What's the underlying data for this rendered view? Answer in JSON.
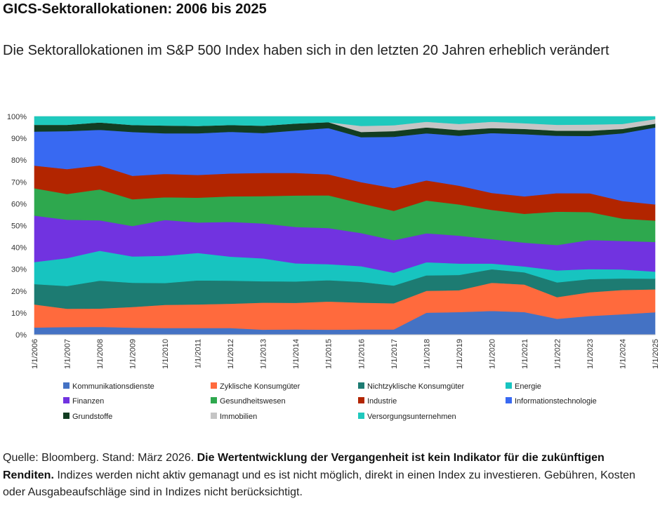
{
  "title": "GICS-Sektorallokationen: 2006 bis 2025",
  "subtitle": "Die Sektorallokationen im S&P 500 Index haben sich in den letzten 20 Jahren erheblich verändert",
  "source": {
    "plain_start": "Quelle: Bloomberg. Stand: März 2026. ",
    "bold": "Die Wertentwicklung der Vergangenheit ist kein Indikator für die zukünftigen Renditen.",
    "plain_end": " Indizes werden nicht aktiv gemanagt und es ist nicht möglich, direkt in einen Index zu investieren. Gebühren, Kosten oder Ausgabeaufschläge sind in Indizes nicht berücksichtigt."
  },
  "chart_data": {
    "type": "area",
    "stacked": true,
    "x": [
      "1/1/2006",
      "1/1/2007",
      "1/1/2008",
      "1/1/2009",
      "1/1/2010",
      "1/1/2011",
      "1/1/2012",
      "1/1/2013",
      "1/1/2014",
      "1/1/2015",
      "1/1/2016",
      "1/1/2017",
      "1/1/2018",
      "1/1/2019",
      "1/1/2020",
      "1/1/2021",
      "1/1/2022",
      "1/1/2023",
      "1/1/2024",
      "1/1/2025"
    ],
    "y_ticks": [
      "0%",
      "10%",
      "20%",
      "30%",
      "40%",
      "50%",
      "60%",
      "70%",
      "80%",
      "90%",
      "100%"
    ],
    "ylim": [
      0,
      100
    ],
    "legend_position": "bottom",
    "series": [
      {
        "name": "Kommunikationsdienste",
        "color": "#4472c4",
        "values": [
          3.3,
          3.5,
          3.6,
          3.2,
          3.1,
          3.1,
          3.1,
          2.3,
          2.4,
          2.3,
          2.4,
          2.4,
          10.1,
          10.4,
          10.9,
          10.4,
          7.3,
          8.6,
          9.4,
          10.3
        ]
      },
      {
        "name": "Zyklische Konsumgüter",
        "color": "#ff6a3d",
        "values": [
          10.6,
          8.4,
          8.4,
          9.5,
          10.6,
          10.8,
          11.1,
          12.4,
          12.2,
          12.9,
          12.3,
          12.0,
          10.0,
          10.0,
          12.9,
          12.6,
          9.9,
          10.9,
          11.1,
          10.5
        ]
      },
      {
        "name": "Nichtzyklische Konsumgüter",
        "color": "#1d7b72",
        "values": [
          9.3,
          10.4,
          12.8,
          11.1,
          10.0,
          11.0,
          10.6,
          9.8,
          9.8,
          9.8,
          9.5,
          8.1,
          7.1,
          7.0,
          6.2,
          5.6,
          6.8,
          6.0,
          5.3,
          4.9
        ]
      },
      {
        "name": "Energie",
        "color": "#17c4c0",
        "values": [
          10.1,
          12.8,
          13.7,
          12.1,
          12.5,
          12.6,
          11.0,
          10.5,
          8.3,
          7.3,
          7.2,
          5.9,
          6.0,
          5.2,
          2.6,
          2.7,
          5.5,
          4.6,
          4.1,
          3.2
        ]
      },
      {
        "name": "Finanzen",
        "color": "#7133e0",
        "values": [
          21.3,
          17.6,
          13.9,
          13.9,
          16.4,
          13.9,
          15.9,
          16.0,
          16.7,
          16.6,
          15.2,
          14.9,
          13.3,
          12.8,
          11.2,
          10.9,
          11.6,
          13.3,
          13.1,
          13.6
        ]
      },
      {
        "name": "Gesundheitswesen",
        "color": "#2ea84e",
        "values": [
          12.5,
          11.8,
          14.2,
          12.3,
          10.4,
          11.4,
          11.7,
          12.5,
          14.4,
          15.0,
          13.6,
          13.5,
          15.0,
          14.3,
          13.4,
          13.2,
          15.3,
          12.8,
          10.2,
          9.8
        ]
      },
      {
        "name": "Industrie",
        "color": "#b22500",
        "values": [
          10.4,
          11.4,
          11.0,
          10.7,
          10.7,
          10.4,
          10.5,
          10.6,
          10.3,
          9.6,
          9.7,
          10.4,
          9.2,
          8.6,
          7.8,
          8.0,
          8.5,
          8.6,
          8.1,
          7.4
        ]
      },
      {
        "name": "Informationstechnologie",
        "color": "#3869f2",
        "values": [
          15.6,
          17.4,
          16.3,
          20.1,
          18.6,
          19.1,
          19.1,
          18.3,
          19.5,
          21.2,
          20.6,
          23.5,
          21.6,
          22.9,
          27.4,
          28.5,
          26.3,
          26.3,
          31.0,
          35.3
        ]
      },
      {
        "name": "Grundstoffe",
        "color": "#123d22",
        "values": [
          3.1,
          2.9,
          3.4,
          3.2,
          3.6,
          3.4,
          3.1,
          3.4,
          3.2,
          2.7,
          2.4,
          2.6,
          2.7,
          2.6,
          2.3,
          2.4,
          2.3,
          2.4,
          2.0,
          1.7
        ]
      },
      {
        "name": "Immobilien",
        "color": "#c5c5c5",
        "values": [
          0,
          0,
          0,
          0,
          0,
          0,
          0,
          0,
          0,
          0,
          2.8,
          2.7,
          2.6,
          2.8,
          2.9,
          2.6,
          2.7,
          2.8,
          2.3,
          2.1
        ]
      },
      {
        "name": "Versorgungsunternehmen",
        "color": "#1fc9bd",
        "values": [
          3.8,
          3.8,
          2.7,
          3.9,
          4.1,
          4.3,
          3.9,
          4.2,
          3.2,
          2.6,
          4.3,
          4.0,
          2.4,
          3.4,
          2.4,
          3.1,
          3.8,
          3.7,
          3.4,
          1.2
        ]
      }
    ]
  }
}
